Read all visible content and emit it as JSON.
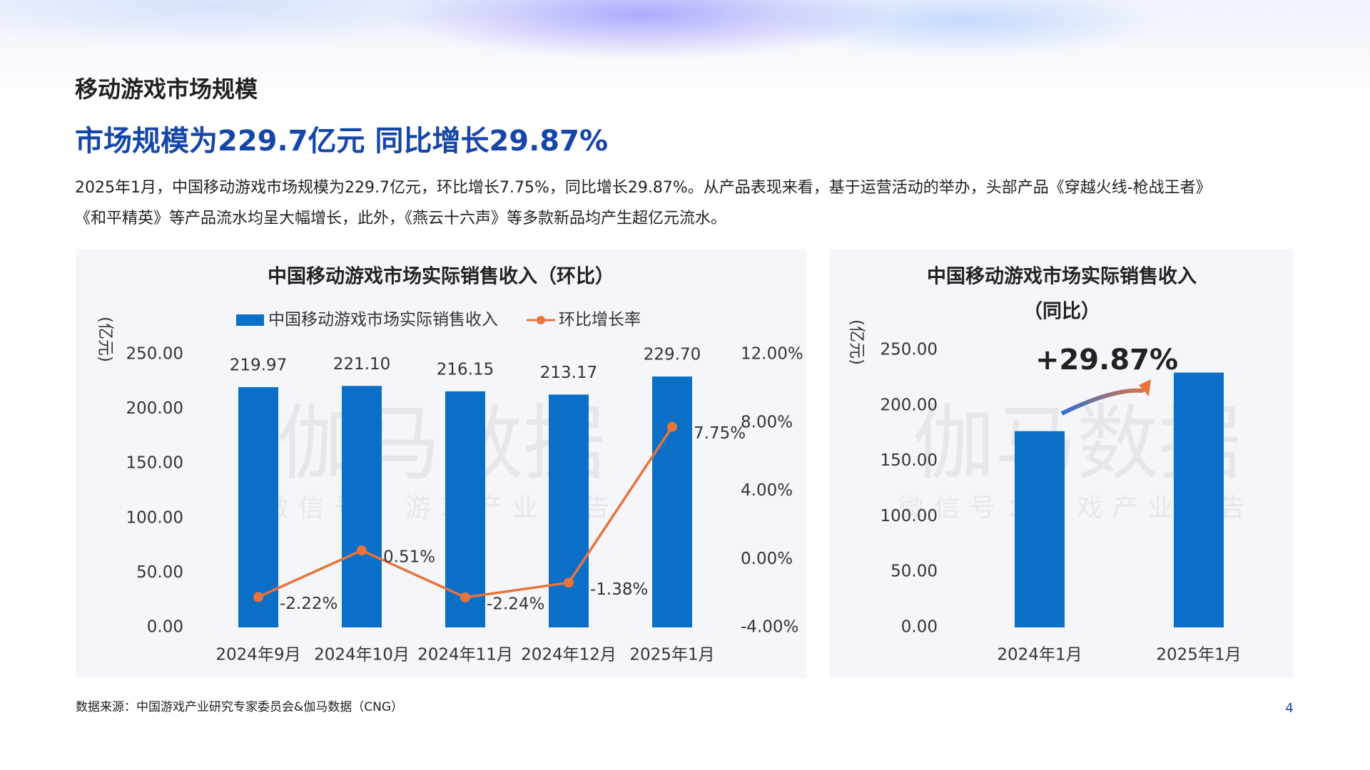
{
  "header": {
    "title": "移动游戏市场规模",
    "headline": "市场规模为229.7亿元  同比增长29.87%"
  },
  "body": [
    "2025年1月，中国移动游戏市场规模为229.7亿元，环比增长7.75%，同比增长29.87%。从产品表现来看，基于运营活动的举办，头部产品《穿越火线-枪战王者》",
    "《和平精英》等产品流水均呈大幅增长，此外，《燕云十六声》等多款新品均产生超亿元流水。"
  ],
  "watermark": {
    "main": "伽马数据",
    "sub": "微信号：游戏产业报告"
  },
  "footer": {
    "source": "数据来源：中国游戏产业研究专家委员会&伽马数据（CNG）",
    "page": "4"
  },
  "chart_data": [
    {
      "type": "bar",
      "title": "中国移动游戏市场实际销售收入（环比）",
      "ylabel": "(亿元)",
      "categories": [
        "2024年9月",
        "2024年10月",
        "2024年11月",
        "2024年12月",
        "2025年1月"
      ],
      "series": [
        {
          "name": "中国移动游戏市场实际销售收入",
          "type": "bar",
          "color": "#0b6fc8",
          "values": [
            219.97,
            221.1,
            216.15,
            213.17,
            229.7
          ],
          "value_labels": [
            "219.97",
            "221.10",
            "216.15",
            "213.17",
            "229.70"
          ]
        },
        {
          "name": "环比增长率",
          "type": "line",
          "axis": "y2",
          "color": "#e8743b",
          "values": [
            -2.22,
            0.51,
            -2.24,
            -1.38,
            7.75
          ],
          "value_labels": [
            "-2.22%",
            "0.51%",
            "-2.24%",
            "-1.38%",
            "7.75%"
          ]
        }
      ],
      "ylim": [
        0,
        250
      ],
      "yticks": [
        {
          "value": 0,
          "label": "0.00"
        },
        {
          "value": 50,
          "label": "50.00"
        },
        {
          "value": 100,
          "label": "100.00"
        },
        {
          "value": 150,
          "label": "150.00"
        },
        {
          "value": 200,
          "label": "200.00"
        },
        {
          "value": 250,
          "label": "250.00"
        }
      ],
      "y2lim": [
        -4,
        12
      ],
      "y2ticks": [
        {
          "value": -4,
          "label": "-4.00%"
        },
        {
          "value": 0,
          "label": "0.00%"
        },
        {
          "value": 4,
          "label": "4.00%"
        },
        {
          "value": 8,
          "label": "8.00%"
        },
        {
          "value": 12,
          "label": "12.00%"
        }
      ],
      "legend": "top",
      "grid": false
    },
    {
      "type": "bar",
      "title": "中国移动游戏市场实际销售收入",
      "title_line2": "（同比）",
      "ylabel": "(亿元)",
      "categories": [
        "2024年1月",
        "2025年1月"
      ],
      "series": [
        {
          "name": "中国移动游戏市场实际销售收入",
          "type": "bar",
          "color": "#0b6fc8",
          "values": [
            176.9,
            229.7
          ]
        }
      ],
      "annotation": "+29.87%",
      "ylim": [
        0,
        250
      ],
      "yticks": [
        {
          "value": 0,
          "label": "0.00"
        },
        {
          "value": 50,
          "label": "50.00"
        },
        {
          "value": 100,
          "label": "100.00"
        },
        {
          "value": 150,
          "label": "150.00"
        },
        {
          "value": 200,
          "label": "200.00"
        },
        {
          "value": 250,
          "label": "250.00"
        }
      ],
      "grid": false
    }
  ]
}
